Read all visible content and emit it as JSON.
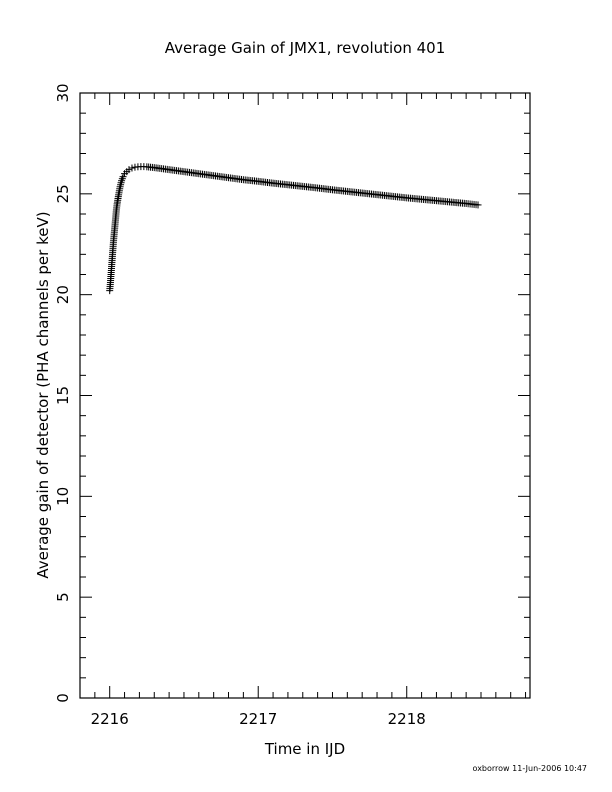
{
  "chart_data": {
    "type": "scatter",
    "title": "Average Gain of JMX1, revolution 401",
    "xlabel": "Time in IJD",
    "ylabel": "Average gain of detector (PHA channels per keV)",
    "footer": "oxborrow 11-Jun-2006 10:47",
    "xlim": [
      2215.8,
      2218.83
    ],
    "ylim": [
      0,
      30
    ],
    "xticks": [
      2216,
      2217,
      2218
    ],
    "yticks": [
      0,
      5,
      10,
      15,
      20,
      25,
      30
    ],
    "grid": false,
    "marker": "plus",
    "series": [
      {
        "x": [
          2216.0,
          2216.005,
          2216.01,
          2216.015,
          2216.02,
          2216.025,
          2216.03,
          2216.035,
          2216.04,
          2216.045,
          2216.05,
          2216.06,
          2216.07,
          2216.08,
          2216.09,
          2216.1,
          2216.115,
          2216.13,
          2216.15,
          2216.17,
          2216.19,
          2216.21,
          2216.23,
          2216.25,
          2216.3,
          2216.35,
          2216.4,
          2216.5,
          2216.6,
          2216.7,
          2216.8,
          2216.9,
          2217.0,
          2217.1,
          2217.2,
          2217.3,
          2217.4,
          2217.5,
          2217.6,
          2217.7,
          2217.8,
          2217.9,
          2218.0,
          2218.1,
          2218.2,
          2218.3,
          2218.4,
          2218.48
        ],
        "y": [
          20.2,
          20.6,
          21.1,
          21.6,
          22.1,
          22.6,
          23.0,
          23.4,
          23.8,
          24.2,
          24.5,
          24.95,
          25.35,
          25.65,
          25.85,
          26.0,
          26.1,
          26.2,
          26.28,
          26.32,
          26.34,
          26.35,
          26.35,
          26.34,
          26.3,
          26.25,
          26.2,
          26.1,
          26.0,
          25.9,
          25.8,
          25.7,
          25.62,
          25.53,
          25.45,
          25.37,
          25.29,
          25.2,
          25.12,
          25.04,
          24.96,
          24.88,
          24.8,
          24.73,
          24.66,
          24.59,
          24.52,
          24.45
        ]
      }
    ]
  }
}
